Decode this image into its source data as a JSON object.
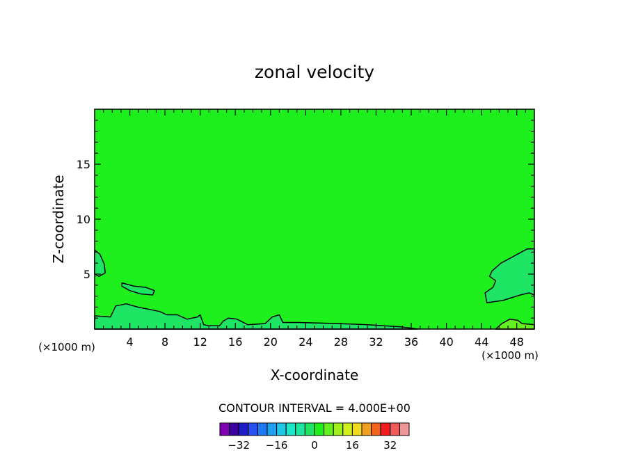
{
  "chart_data": {
    "type": "heatmap",
    "title": "zonal velocity",
    "xlabel": "X-coordinate",
    "ylabel": "Z-coordinate",
    "x_unit": "(×1000 m)",
    "z_unit": "(×1000 m)",
    "xlim": [
      0,
      50
    ],
    "ylim": [
      0,
      20
    ],
    "x_ticks": [
      4,
      8,
      12,
      16,
      20,
      24,
      28,
      32,
      36,
      40,
      44,
      48
    ],
    "y_ticks": [
      5,
      10,
      15
    ],
    "background_level": 0,
    "contour_interval_label": "CONTOUR INTERVAL = 4.000E+00",
    "contour_interval": 4,
    "colorbar": {
      "levels": [
        -36,
        -32,
        -28,
        -24,
        -20,
        -16,
        -12,
        -8,
        -4,
        0,
        4,
        8,
        12,
        16,
        20,
        24,
        28,
        32,
        36
      ],
      "colors": [
        "#7f00b2",
        "#3c00a0",
        "#1e1ec8",
        "#2850f0",
        "#1e78f0",
        "#1ea0f0",
        "#1ec8e6",
        "#1ee6c8",
        "#1ee6a0",
        "#1ee664",
        "#1ef01e",
        "#64f01e",
        "#a0f01e",
        "#d2f01e",
        "#f0dc1e",
        "#f0a01e",
        "#f0641e",
        "#f01e1e",
        "#f05a5a",
        "#f09696"
      ],
      "tick_labels": [
        "-32",
        "-16",
        "0",
        "16",
        "32"
      ],
      "tick_values": [
        -32,
        -16,
        0,
        16,
        32
      ]
    },
    "regions": [
      {
        "name": "right-upper-cell",
        "level": -4,
        "color": "#1ee664",
        "outline": [
          [
            50,
            7.3
          ],
          [
            49.2,
            7.3
          ],
          [
            47.6,
            6.6
          ],
          [
            46.2,
            6
          ],
          [
            45.2,
            5.3
          ],
          [
            44.9,
            4.8
          ],
          [
            45.6,
            4.4
          ],
          [
            45.3,
            3.8
          ],
          [
            44.4,
            3.3
          ],
          [
            44.6,
            2.4
          ],
          [
            46.4,
            2.6
          ],
          [
            48.4,
            3.1
          ],
          [
            49.4,
            3.3
          ],
          [
            50,
            3.1
          ]
        ]
      },
      {
        "name": "left-edge-cell",
        "level": -4,
        "color": "#1ee664",
        "outline": [
          [
            0,
            7.2
          ],
          [
            0.6,
            6.8
          ],
          [
            1.1,
            5.9
          ],
          [
            1.2,
            5.1
          ],
          [
            0.5,
            4.8
          ],
          [
            0,
            5
          ]
        ]
      },
      {
        "name": "lower-left-cell",
        "level": -4,
        "color": "#1ee664",
        "outline": [
          [
            0,
            0
          ],
          [
            0,
            1.2
          ],
          [
            1.8,
            1.1
          ],
          [
            2.4,
            2.1
          ],
          [
            3.6,
            2.3
          ],
          [
            4.9,
            2
          ],
          [
            7.4,
            1.6
          ],
          [
            8.2,
            1.3
          ],
          [
            9.4,
            1.3
          ],
          [
            10.5,
            0.9
          ],
          [
            11.7,
            1.1
          ],
          [
            12,
            1.3
          ],
          [
            12.4,
            0.4
          ],
          [
            13,
            0.3
          ],
          [
            14.2,
            0.3
          ],
          [
            14.6,
            0.7
          ],
          [
            15.2,
            1
          ],
          [
            16.2,
            0.9
          ],
          [
            17.4,
            0.4
          ],
          [
            19.4,
            0.5
          ],
          [
            20.2,
            1.1
          ],
          [
            21,
            1.3
          ],
          [
            21.4,
            0.6
          ],
          [
            23.2,
            0.6
          ],
          [
            27.8,
            0.5
          ],
          [
            31,
            0.4
          ],
          [
            34.8,
            0.2
          ],
          [
            36.8,
            0
          ],
          [
            0,
            0
          ]
        ]
      },
      {
        "name": "floating-cell",
        "level": -4,
        "color": "#1ee664",
        "outline": [
          [
            3.1,
            4.2
          ],
          [
            4.5,
            3.9
          ],
          [
            5.8,
            3.8
          ],
          [
            6.8,
            3.5
          ],
          [
            6.6,
            3.1
          ],
          [
            5.2,
            3.2
          ],
          [
            4,
            3.5
          ],
          [
            3.1,
            3.9
          ]
        ]
      },
      {
        "name": "right-surface-cell",
        "level": 4,
        "color": "#64f01e",
        "outline": [
          [
            45.6,
            0
          ],
          [
            46.3,
            0.5
          ],
          [
            47.2,
            0.9
          ],
          [
            48.1,
            0.8
          ],
          [
            48.6,
            0.5
          ],
          [
            50,
            0.4
          ],
          [
            50,
            0
          ]
        ]
      }
    ]
  }
}
